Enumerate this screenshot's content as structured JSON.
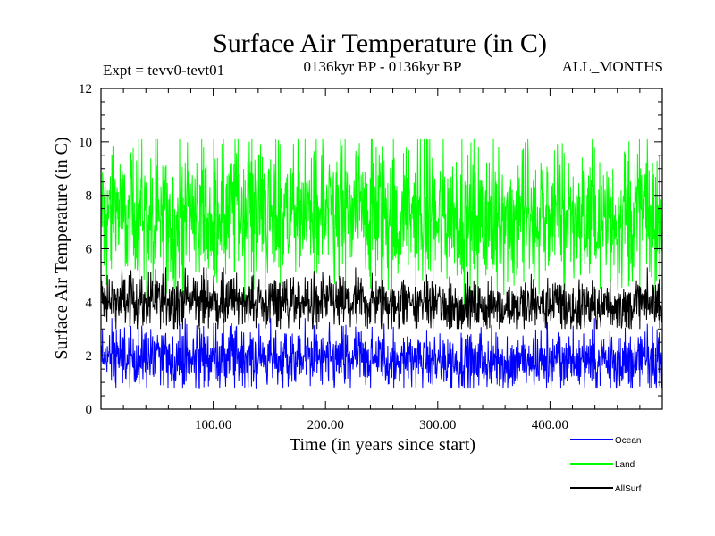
{
  "chart_data": {
    "type": "line",
    "title": "Surface Air Temperature (in C)",
    "subtitle_left": "Expt = tevv0-tevt01",
    "subtitle_center": "0136kyr BP - 0136kyr BP",
    "subtitle_right": "ALL_MONTHS",
    "xlabel": "Time (in years since start)",
    "ylabel": "Surface Air Temperature (in C)",
    "xlim": [
      0,
      500
    ],
    "ylim": [
      0,
      12
    ],
    "x_ticks": [
      100,
      200,
      300,
      400
    ],
    "x_tick_labels": [
      "100.00",
      "200.00",
      "300.00",
      "400.00"
    ],
    "y_ticks": [
      0,
      2,
      4,
      6,
      8,
      10,
      12
    ],
    "y_tick_labels": [
      "0",
      "2",
      "4",
      "6",
      "8",
      "10",
      "12"
    ],
    "grid": false,
    "legend_position": "bottom-right, below plot",
    "series": [
      {
        "name": "Ocean",
        "color": "#0000ff",
        "mean": 1.9,
        "min": 0.8,
        "max": 3.4,
        "x": [
          0,
          50,
          100,
          150,
          200,
          250,
          300,
          350,
          400,
          450,
          500
        ],
        "values": [
          1.9,
          1.9,
          2.0,
          1.9,
          1.9,
          1.9,
          1.8,
          1.8,
          1.8,
          1.8,
          1.8
        ]
      },
      {
        "name": "Land",
        "color": "#00ff00",
        "mean": 7.3,
        "min": 3.8,
        "max": 10.1,
        "x": [
          0,
          50,
          100,
          150,
          200,
          250,
          300,
          350,
          400,
          450,
          500
        ],
        "values": [
          7.4,
          7.3,
          7.4,
          7.3,
          7.3,
          7.3,
          7.2,
          7.2,
          7.2,
          7.2,
          7.2
        ]
      },
      {
        "name": "AllSurf",
        "color": "#000000",
        "mean": 4.0,
        "min": 3.0,
        "max": 5.3,
        "x": [
          0,
          50,
          100,
          150,
          200,
          250,
          300,
          350,
          400,
          450,
          500
        ],
        "values": [
          4.1,
          4.0,
          4.1,
          4.0,
          4.0,
          4.0,
          3.9,
          3.9,
          3.9,
          3.9,
          3.9
        ]
      }
    ]
  }
}
